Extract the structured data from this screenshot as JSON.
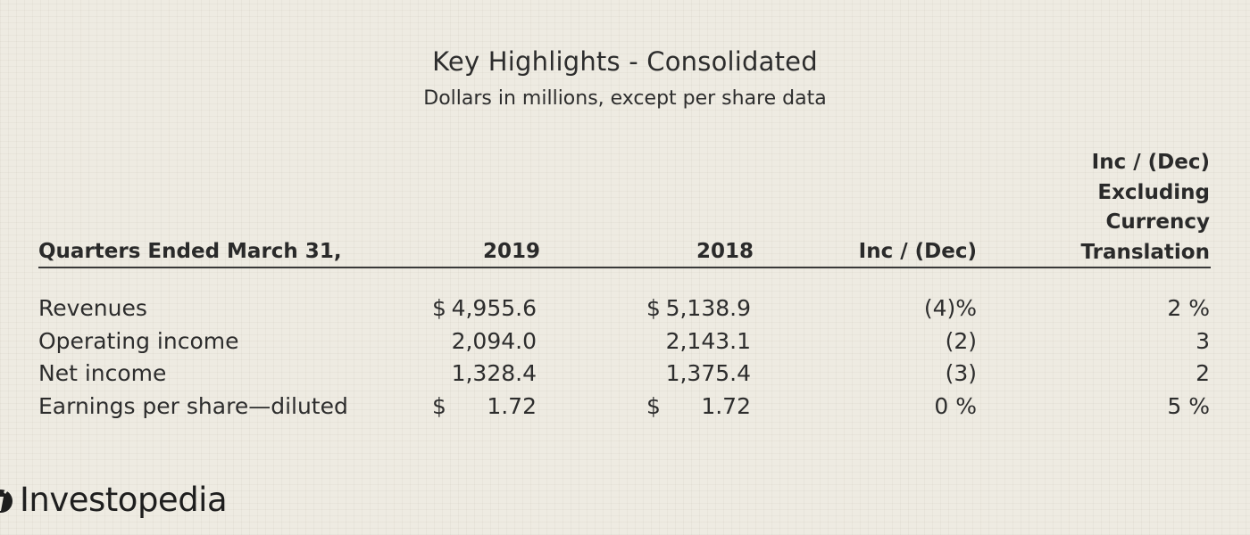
{
  "header": {
    "title": "Key Highlights - Consolidated",
    "subtitle": "Dollars in millions, except per share data"
  },
  "table": {
    "columns": {
      "label": "Quarters Ended March 31,",
      "y2019": "2019",
      "y2018": "2018",
      "inc_dec": "Inc / (Dec)",
      "excl_currency": [
        "Inc / (Dec)",
        "Excluding",
        "Currency",
        "Translation"
      ]
    },
    "rows": [
      {
        "label": "Revenues",
        "dollar19": "$",
        "v19": "4,955.6",
        "dollar18": "$",
        "v18": "5,138.9",
        "inc": "(4)%",
        "excl": "2 %"
      },
      {
        "label": "Operating income",
        "dollar19": "",
        "v19": "2,094.0",
        "dollar18": "",
        "v18": "2,143.1",
        "inc": "(2)",
        "excl": "3"
      },
      {
        "label": "Net income",
        "dollar19": "",
        "v19": "1,328.4",
        "dollar18": "",
        "v18": "1,375.4",
        "inc": "(3)",
        "excl": "2"
      },
      {
        "label": "Earnings per share—diluted",
        "dollar19": "$",
        "v19": "1.72",
        "dollar18": "$",
        "v18": "1.72",
        "inc": "0 %",
        "excl": "5 %"
      }
    ]
  },
  "branding": {
    "logo_text": "Investopedia",
    "logo_icon": "investopedia-i-icon",
    "logo_color": "#1e1e1e"
  },
  "colors": {
    "background": "#eeebe2",
    "text": "#2d2d2d",
    "rule": "#3a3a3a"
  }
}
